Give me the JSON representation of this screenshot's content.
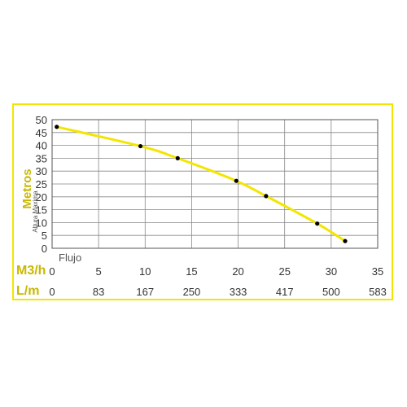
{
  "chart_data": {
    "type": "line",
    "ylabel": "Metros",
    "ylabel_secondary": "Altura Maxima",
    "xlabel": "Flujo",
    "x_unit_primary": "M3/h",
    "x_unit_secondary": "L/m",
    "xlim": [
      0,
      35
    ],
    "ylim": [
      0,
      50
    ],
    "x_ticks": [
      "0",
      "5",
      "10",
      "15",
      "20",
      "25",
      "30",
      "35"
    ],
    "x_ticks_secondary": [
      "0",
      "83",
      "167",
      "250",
      "333",
      "417",
      "500",
      "583"
    ],
    "y_ticks": [
      "0",
      "5",
      "10",
      "15",
      "20",
      "25",
      "30",
      "35",
      "40",
      "45",
      "50"
    ],
    "grid": true,
    "series": [
      {
        "x": [
          0.5,
          9.5,
          13.5,
          19.8,
          23.0,
          28.5,
          31.5
        ],
        "y": [
          47.2,
          39.7,
          35.0,
          26.2,
          20.3,
          9.6,
          2.8
        ]
      }
    ],
    "colors": {
      "frame": "#f2e600",
      "line": "#f2e600",
      "marker": "#000000",
      "key_text": "#c9b800",
      "grid": "#888888"
    }
  }
}
